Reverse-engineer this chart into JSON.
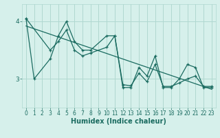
{
  "xlabel": "Humidex (Indice chaleur)",
  "bg_color": "#d6f0eb",
  "grid_color": "#b0d8d0",
  "line_color": "#1a6b60",
  "xlim": [
    -0.5,
    23.5
  ],
  "ylim": [
    2.5,
    4.3
  ],
  "yticks": [
    3,
    4
  ],
  "xticks": [
    0,
    1,
    2,
    3,
    4,
    5,
    6,
    7,
    8,
    9,
    10,
    11,
    12,
    13,
    14,
    15,
    16,
    17,
    18,
    19,
    20,
    21,
    22,
    23
  ],
  "series1_x": [
    0,
    1,
    3,
    4,
    5,
    6,
    7,
    8,
    10,
    11,
    12,
    13,
    14,
    15,
    16,
    17,
    18,
    19,
    20,
    21,
    22,
    23
  ],
  "series1_y": [
    4.05,
    3.0,
    3.35,
    3.75,
    4.0,
    3.65,
    3.5,
    3.5,
    3.75,
    3.75,
    2.85,
    2.85,
    3.2,
    3.05,
    3.4,
    2.85,
    2.85,
    3.0,
    3.25,
    3.2,
    2.85,
    2.85
  ],
  "series2_x": [
    0,
    3,
    4,
    5,
    6,
    7,
    8,
    10,
    11,
    12,
    13,
    14,
    15,
    16,
    17,
    18,
    19,
    20,
    21,
    22,
    23
  ],
  "series2_y": [
    4.05,
    3.5,
    3.65,
    3.85,
    3.5,
    3.4,
    3.45,
    3.55,
    3.75,
    2.9,
    2.88,
    3.1,
    2.95,
    3.25,
    2.87,
    2.87,
    2.93,
    3.0,
    3.05,
    2.87,
    2.87
  ],
  "trend_x": [
    0,
    23
  ],
  "trend_y": [
    3.92,
    2.82
  ]
}
